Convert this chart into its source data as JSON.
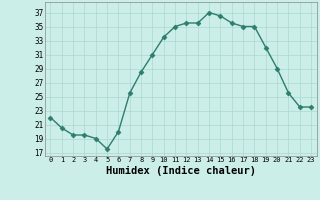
{
  "x": [
    0,
    1,
    2,
    3,
    4,
    5,
    6,
    7,
    8,
    9,
    10,
    11,
    12,
    13,
    14,
    15,
    16,
    17,
    18,
    19,
    20,
    21,
    22,
    23
  ],
  "y": [
    22,
    20.5,
    19.5,
    19.5,
    19,
    17.5,
    20,
    25.5,
    28.5,
    31,
    33.5,
    35,
    35.5,
    35.5,
    37,
    36.5,
    35.5,
    35,
    35,
    32,
    29,
    25.5,
    23.5,
    23.5
  ],
  "line_color": "#2e7d6e",
  "marker": "D",
  "marker_size": 2.5,
  "bg_color": "#cceee8",
  "grid_color": "#aad8d0",
  "xlabel": "Humidex (Indice chaleur)",
  "xlabel_fontsize": 7.5,
  "ylabel_ticks": [
    17,
    19,
    21,
    23,
    25,
    27,
    29,
    31,
    33,
    35,
    37
  ],
  "ylim": [
    16.5,
    38.5
  ],
  "xlim": [
    -0.5,
    23.5
  ],
  "xtick_labels": [
    "0",
    "1",
    "2",
    "3",
    "4",
    "5",
    "6",
    "7",
    "8",
    "9",
    "10",
    "11",
    "12",
    "13",
    "14",
    "15",
    "16",
    "17",
    "18",
    "19",
    "20",
    "21",
    "22",
    "23"
  ],
  "title": ""
}
